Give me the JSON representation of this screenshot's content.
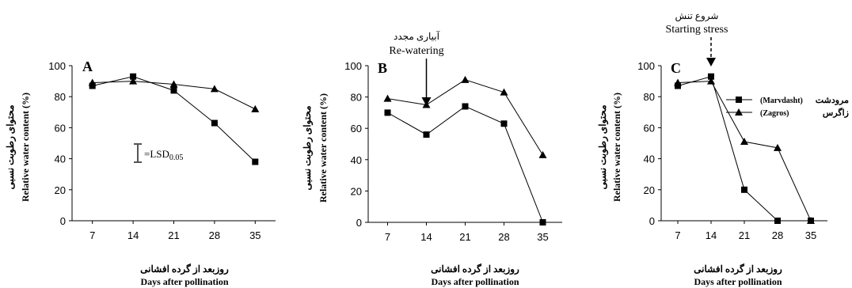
{
  "chart_data": [
    {
      "type": "line",
      "panel_letter": "A",
      "x": [
        7,
        14,
        21,
        28,
        35
      ],
      "xlim": [
        7,
        35
      ],
      "ylim": [
        0,
        100
      ],
      "yticks": [
        0,
        20,
        40,
        60,
        80,
        100
      ],
      "ylabel_fa": "محتوای رطوبت نسبی",
      "ylabel_en": "Relative water content (%)",
      "xlabel_fa": "روزبعد از گرده افشانی",
      "xlabel_en": "Days after pollination",
      "series": [
        {
          "marker": "square",
          "values": [
            87,
            93,
            84,
            63,
            38
          ]
        },
        {
          "marker": "triangle",
          "values": [
            89,
            90,
            88,
            85,
            72
          ]
        }
      ],
      "lsd_label": "=LSD",
      "lsd_subscript": "0.05"
    },
    {
      "type": "line",
      "panel_letter": "B",
      "x": [
        7,
        14,
        21,
        28,
        35
      ],
      "xlim": [
        7,
        35
      ],
      "ylim": [
        0,
        100
      ],
      "yticks": [
        0,
        20,
        40,
        60,
        80,
        100
      ],
      "ylabel_fa": "محتوای رطوبت نسبی",
      "ylabel_en": "Relative water content (%)",
      "xlabel_fa": "روزبعد از گرده افشانی",
      "xlabel_en": "Days after pollination",
      "series": [
        {
          "marker": "square",
          "values": [
            70,
            56,
            74,
            63,
            0
          ]
        },
        {
          "marker": "triangle",
          "values": [
            79,
            75,
            91,
            83,
            43
          ]
        }
      ],
      "annotation_fa": "آبیاری مجدد",
      "annotation_en": "Re-watering",
      "annotation_x": 14,
      "annotation_style": "solid"
    },
    {
      "type": "line",
      "panel_letter": "C",
      "x": [
        7,
        14,
        21,
        28,
        35
      ],
      "xlim": [
        7,
        35
      ],
      "ylim": [
        0,
        100
      ],
      "yticks": [
        0,
        20,
        40,
        60,
        80,
        100
      ],
      "ylabel_fa": "محتوای رطوبت نسبی",
      "ylabel_en": "Relative water content (%)",
      "xlabel_fa": "روزبعد از گرده افشانی",
      "xlabel_en": "Days after pollination",
      "series": [
        {
          "name": "مرودشت (Marvdasht)",
          "marker": "square",
          "values": [
            87,
            93,
            20,
            0,
            0
          ]
        },
        {
          "name": "زاگرس (Zagros)",
          "marker": "triangle",
          "values": [
            89,
            90,
            51,
            47,
            0
          ]
        }
      ],
      "annotation_fa": "شروع تنش",
      "annotation_en": "Starting stress",
      "annotation_x": 14,
      "annotation_style": "dashed",
      "legend": [
        {
          "fa": "مرودشت",
          "en": "(Marvdasht)"
        },
        {
          "fa": "زاگرس",
          "en": "(Zagros)"
        }
      ]
    }
  ]
}
